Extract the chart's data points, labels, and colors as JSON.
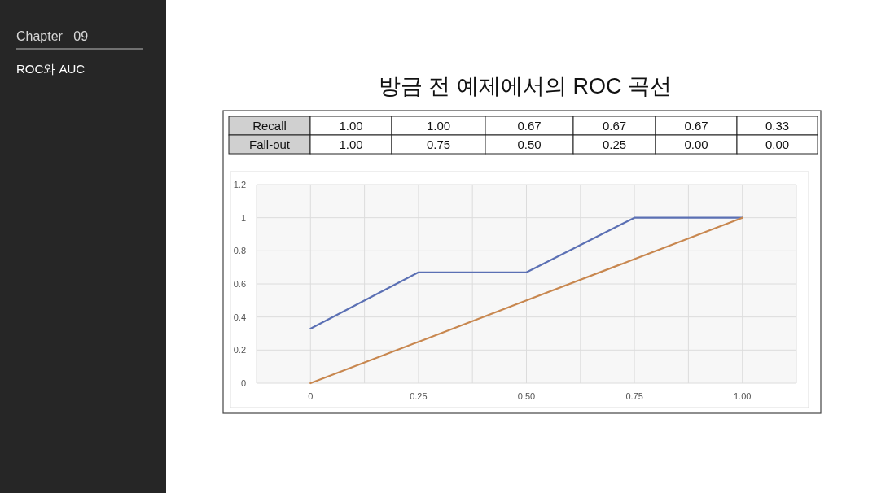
{
  "chart_data": {
    "type": "line",
    "title": "방금 전 예제에서의 ROC 곡선",
    "x": [
      0,
      0.25,
      0.5,
      0.75,
      1
    ],
    "series": [
      {
        "color": "#5b70b4",
        "values": [
          0.33,
          0.67,
          0.67,
          1,
          1
        ]
      },
      {
        "color": "#c8874f",
        "values": [
          0,
          0.25,
          0.5,
          0.75,
          1
        ]
      }
    ],
    "xlim": [
      -0.125,
      1.125
    ],
    "xticks": [
      {
        "value": -0.125,
        "label": null
      },
      {
        "value": 0,
        "label": "0"
      },
      {
        "value": 0.125,
        "label": null
      },
      {
        "value": 0.25,
        "label": "0.25"
      },
      {
        "value": 0.375,
        "label": null
      },
      {
        "value": 0.5,
        "label": "0.50"
      },
      {
        "value": 0.625,
        "label": null
      },
      {
        "value": 0.75,
        "label": "0.75"
      },
      {
        "value": 0.875,
        "label": null
      },
      {
        "value": 1,
        "label": "1.00"
      },
      {
        "value": 1.125,
        "label": null
      }
    ],
    "ylim": [
      0,
      1.2
    ],
    "yticks": [
      0,
      0.2,
      0.4,
      0.6,
      0.8,
      1,
      1.2
    ],
    "grid": true,
    "marker": "none",
    "line_style": "solid",
    "annotations": [
      "Chapter   09",
      "ROC와 AUC",
      "Recall",
      "1.00",
      "1.00",
      "0.67",
      "0.67",
      "0.67",
      "0.33",
      "Fall-out",
      "1.00",
      "0.75",
      "0.50",
      "0.25",
      "0.00",
      "0.00"
    ]
  }
}
